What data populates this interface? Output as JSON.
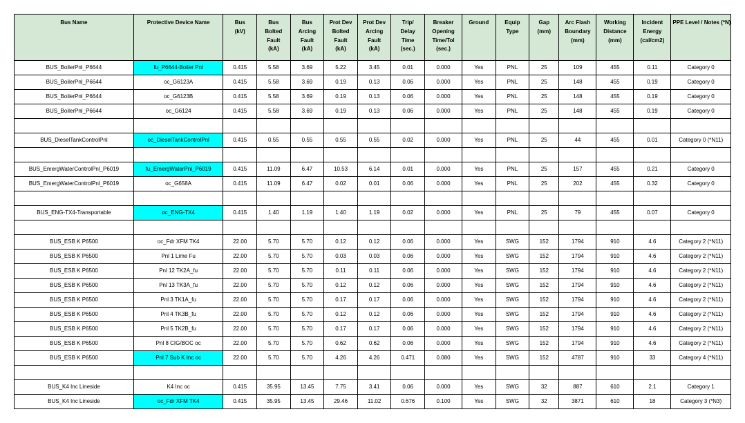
{
  "table": {
    "header_bg": "#d5e8d5",
    "highlight_bg": "#00ffff",
    "border_color": "#000000",
    "font_family": "Arial, sans-serif",
    "header_fontsize": 8,
    "cell_fontsize": 8,
    "columns": [
      {
        "key": "bus_name",
        "label": "Bus Name",
        "width": "16%"
      },
      {
        "key": "protective_device",
        "label": "Protective Device Name",
        "width": "12%"
      },
      {
        "key": "bus_kv",
        "label": "Bus\n(kV)",
        "width": "4.5%"
      },
      {
        "key": "bus_bolted_fault",
        "label": "Bus\nBolted\nFault\n(kA)",
        "width": "4.5%"
      },
      {
        "key": "bus_arcing_fault",
        "label": "Bus\nArcing\nFault\n(kA)",
        "width": "4.5%"
      },
      {
        "key": "prot_bolted_fault",
        "label": "Prot Dev\nBolted\nFault\n(kA)",
        "width": "4.5%"
      },
      {
        "key": "prot_arcing_fault",
        "label": "Prot Dev\nArcing\nFault\n(kA)",
        "width": "4.5%"
      },
      {
        "key": "trip_delay_time",
        "label": "Trip/\nDelay\nTime\n(sec.)",
        "width": "4.5%"
      },
      {
        "key": "breaker_opening",
        "label": "Breaker\nOpening\nTime/Tol\n(sec.)",
        "width": "5%"
      },
      {
        "key": "ground",
        "label": "Ground",
        "width": "4.5%"
      },
      {
        "key": "equip_type",
        "label": "Equip\nType",
        "width": "4.5%"
      },
      {
        "key": "gap",
        "label": "Gap\n(mm)",
        "width": "4%"
      },
      {
        "key": "arc_flash_boundary",
        "label": "Arc Flash\nBoundary\n(mm)",
        "width": "5%"
      },
      {
        "key": "working_distance",
        "label": "Working\nDistance\n(mm)",
        "width": "5%"
      },
      {
        "key": "incident_energy",
        "label": "Incident\nEnergy\n(cal/cm2)",
        "width": "5%"
      },
      {
        "key": "ppe_level",
        "label": "PPE Level / Notes (*N)",
        "width": "8%"
      }
    ],
    "rows": [
      {
        "cells": [
          "BUS_BoilerPnl_P6644",
          "fu_P6644-Boiler Pnl",
          "0.415",
          "5.58",
          "3.69",
          "5.22",
          "3.45",
          "0.01",
          "0.000",
          "Yes",
          "PNL",
          "25",
          "109",
          "455",
          "0.11",
          "Category 0"
        ],
        "highlight_col": 1
      },
      {
        "cells": [
          "BUS_BoilerPnl_P6644",
          "oc_G6123A",
          "0.415",
          "5.58",
          "3.69",
          "0.19",
          "0.13",
          "0.06",
          "0.000",
          "Yes",
          "PNL",
          "25",
          "148",
          "455",
          "0.19",
          "Category 0"
        ]
      },
      {
        "cells": [
          "BUS_BoilerPnl_P6644",
          "oc_G6123B",
          "0.415",
          "5.58",
          "3.69",
          "0.19",
          "0.13",
          "0.06",
          "0.000",
          "Yes",
          "PNL",
          "25",
          "148",
          "455",
          "0.19",
          "Category 0"
        ]
      },
      {
        "cells": [
          "BUS_BoilerPnl_P6644",
          "oc_G6124",
          "0.415",
          "5.58",
          "3.69",
          "0.19",
          "0.13",
          "0.06",
          "0.000",
          "Yes",
          "PNL",
          "25",
          "148",
          "455",
          "0.19",
          "Category 0"
        ]
      },
      {
        "blank": true
      },
      {
        "cells": [
          "BUS_DieselTankControlPnl",
          "oc_DieselTankControlPnl",
          "0.415",
          "0.55",
          "0.55",
          "0.55",
          "0.55",
          "0.02",
          "0.000",
          "Yes",
          "PNL",
          "25",
          "44",
          "455",
          "0.01",
          "Category 0 (*N11)"
        ],
        "highlight_col": 1
      },
      {
        "blank": true
      },
      {
        "cells": [
          "BUS_EmergWaterControlPnl_P6019",
          "fu_EmergWaterPnl_P6019",
          "0.415",
          "11.09",
          "6.47",
          "10.53",
          "6.14",
          "0.01",
          "0.000",
          "Yes",
          "PNL",
          "25",
          "157",
          "455",
          "0.21",
          "Category 0"
        ],
        "highlight_col": 1
      },
      {
        "cells": [
          "BUS_EmergWaterControlPnl_P6019",
          "oc_G658A",
          "0.415",
          "11.09",
          "6.47",
          "0.02",
          "0.01",
          "0.06",
          "0.000",
          "Yes",
          "PNL",
          "25",
          "202",
          "455",
          "0.32",
          "Category 0"
        ]
      },
      {
        "blank": true
      },
      {
        "cells": [
          "BUS_ENG-TX4-Transportable",
          "oc_ENG-TX4",
          "0.415",
          "1.40",
          "1.19",
          "1.40",
          "1.19",
          "0.02",
          "0.000",
          "Yes",
          "PNL",
          "25",
          "79",
          "455",
          "0.07",
          "Category 0"
        ],
        "highlight_col": 1
      },
      {
        "blank": true
      },
      {
        "cells": [
          "BUS_ESB K P6500",
          "oc_Fdr XFM TK4",
          "22.00",
          "5.70",
          "5.70",
          "0.12",
          "0.12",
          "0.06",
          "0.000",
          "Yes",
          "SWG",
          "152",
          "1794",
          "910",
          "4.6",
          "Category 2 (*N11)"
        ]
      },
      {
        "cells": [
          "BUS_ESB K P6500",
          "Pnl 1 Lime Fu",
          "22.00",
          "5.70",
          "5.70",
          "0.03",
          "0.03",
          "0.06",
          "0.000",
          "Yes",
          "SWG",
          "152",
          "1794",
          "910",
          "4.6",
          "Category 2 (*N11)"
        ]
      },
      {
        "cells": [
          "BUS_ESB K P6500",
          "Pnl 12 TK2A_fu",
          "22.00",
          "5.70",
          "5.70",
          "0.11",
          "0.11",
          "0.06",
          "0.000",
          "Yes",
          "SWG",
          "152",
          "1794",
          "910",
          "4.6",
          "Category 2 (*N11)"
        ]
      },
      {
        "cells": [
          "BUS_ESB K P6500",
          "Pnl 13 TK3A_fu",
          "22.00",
          "5.70",
          "5.70",
          "0.12",
          "0.12",
          "0.06",
          "0.000",
          "Yes",
          "SWG",
          "152",
          "1794",
          "910",
          "4.6",
          "Category 2 (*N11)"
        ]
      },
      {
        "cells": [
          "BUS_ESB K P6500",
          "Pnl 3 TK1A_fu",
          "22.00",
          "5.70",
          "5.70",
          "0.17",
          "0.17",
          "0.06",
          "0.000",
          "Yes",
          "SWG",
          "152",
          "1794",
          "910",
          "4.6",
          "Category 2 (*N11)"
        ]
      },
      {
        "cells": [
          "BUS_ESB K P6500",
          "Pnl 4 TK3B_fu",
          "22.00",
          "5.70",
          "5.70",
          "0.12",
          "0.12",
          "0.06",
          "0.000",
          "Yes",
          "SWG",
          "152",
          "1794",
          "910",
          "4.6",
          "Category 2 (*N11)"
        ]
      },
      {
        "cells": [
          "BUS_ESB K P6500",
          "Pnl 5 TK2B_fu",
          "22.00",
          "5.70",
          "5.70",
          "0.17",
          "0.17",
          "0.06",
          "0.000",
          "Yes",
          "SWG",
          "152",
          "1794",
          "910",
          "4.6",
          "Category 2 (*N11)"
        ]
      },
      {
        "cells": [
          "BUS_ESB K P6500",
          "Pnl 8 CIG/BOC oc",
          "22.00",
          "5.70",
          "5.70",
          "0.62",
          "0.62",
          "0.06",
          "0.000",
          "Yes",
          "SWG",
          "152",
          "1794",
          "910",
          "4.6",
          "Category 2 (*N11)"
        ]
      },
      {
        "cells": [
          "BUS_ESB K P6500",
          "Pnl 7 Sub K Inc oc",
          "22.00",
          "5.70",
          "5.70",
          "4.26",
          "4.26",
          "0.471",
          "0.080",
          "Yes",
          "SWG",
          "152",
          "4787",
          "910",
          "33",
          "Category 4 (*N11)"
        ],
        "highlight_col": 1
      },
      {
        "blank": true
      },
      {
        "cells": [
          "BUS_K4 Inc Lineside",
          "K4 Inc oc",
          "0.415",
          "35.95",
          "13.45",
          "7.75",
          "3.41",
          "0.06",
          "0.000",
          "Yes",
          "SWG",
          "32",
          "887",
          "610",
          "2.1",
          "Category 1"
        ]
      },
      {
        "cells": [
          "BUS_K4 Inc Lineside",
          "oc_Fdr XFM TK4",
          "0.415",
          "35.95",
          "13.45",
          "29.46",
          "11.02",
          "0.676",
          "0.100",
          "Yes",
          "SWG",
          "32",
          "3871",
          "610",
          "18",
          "Category 3 (*N3)"
        ],
        "highlight_col": 1
      }
    ]
  }
}
